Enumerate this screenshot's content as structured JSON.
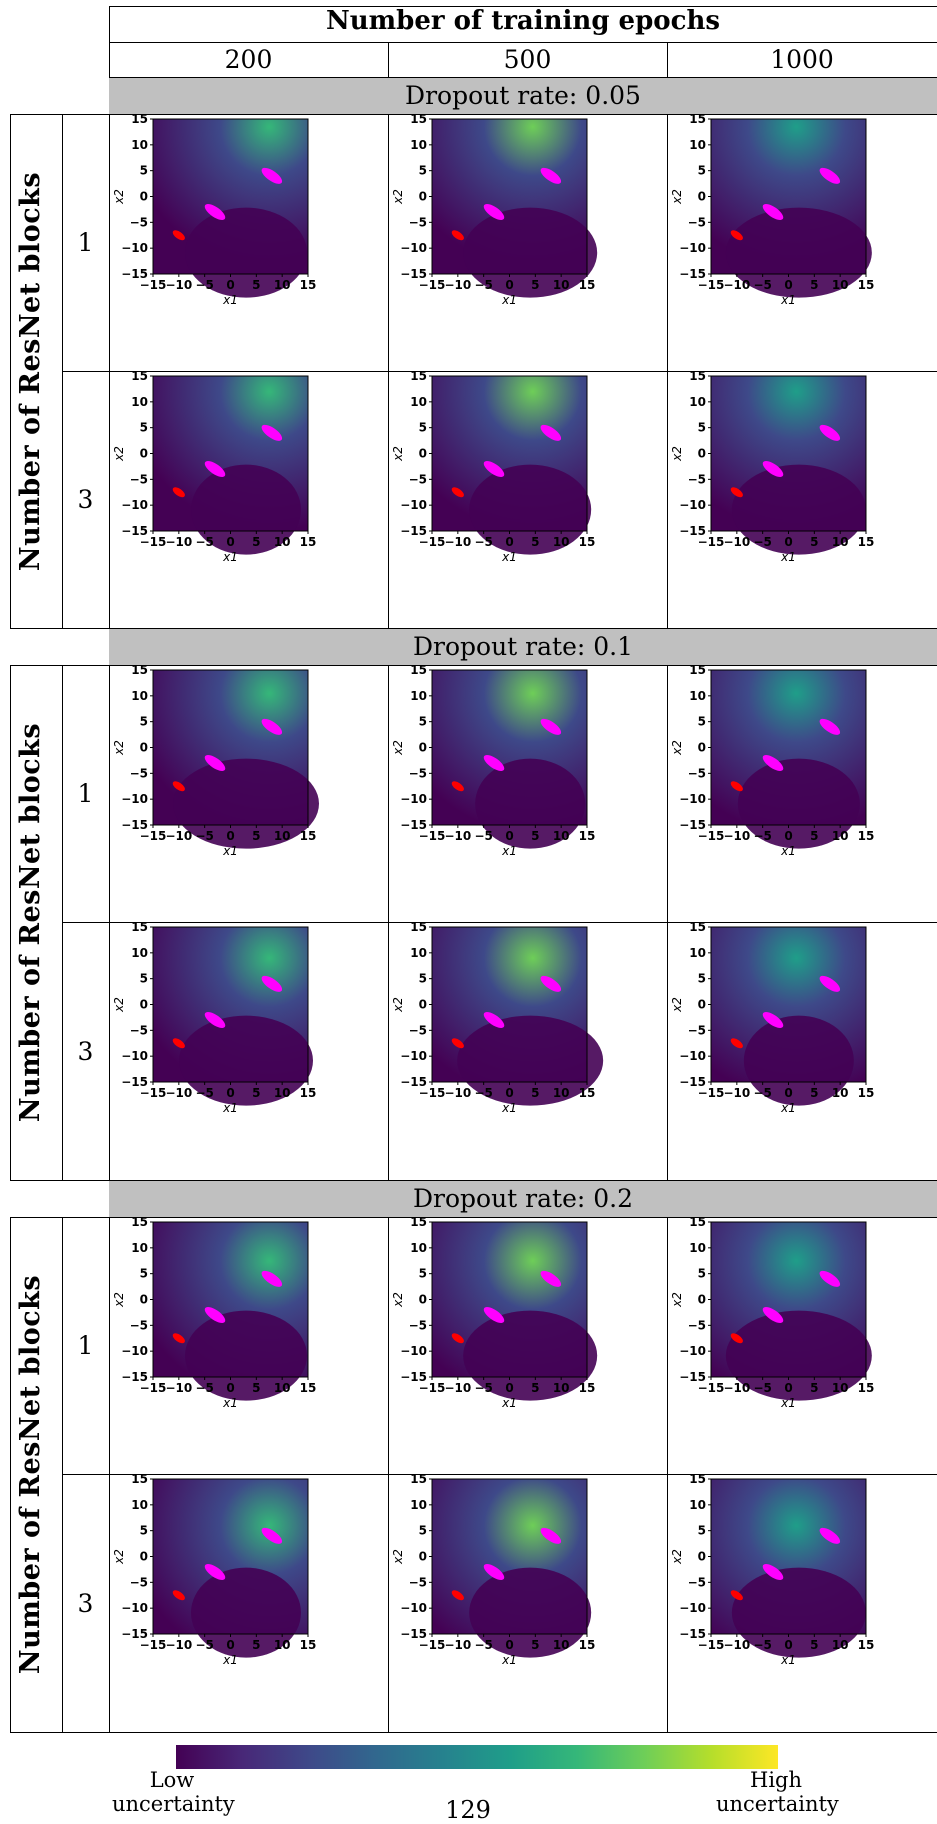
{
  "figure": {
    "column_header": "Number of training epochs",
    "epochs": [
      "200",
      "500",
      "1000"
    ],
    "row_header": "Number of ResNet blocks",
    "blocks": [
      "1",
      "3"
    ],
    "dropout_sections": [
      {
        "label": "Dropout rate: 0.05"
      },
      {
        "label": "Dropout rate: 0.1"
      },
      {
        "label": "Dropout rate: 0.2"
      }
    ],
    "colorbar": {
      "low_label_1": "Low",
      "low_label_2": "uncertainty",
      "high_label_1": "High",
      "high_label_2": "uncertainty",
      "colors": [
        "#440154",
        "#482878",
        "#3e4989",
        "#31688e",
        "#26828e",
        "#1f9e89",
        "#35b779",
        "#6ece58",
        "#b5de2b",
        "#fde725"
      ]
    },
    "page_number": "129"
  },
  "chart_data": {
    "type": "heatmap",
    "panel_grid": "3 dropout rates x 2 ResNet block counts x 3 epoch counts",
    "xlabel": "x1",
    "ylabel": "x2",
    "xlim": [
      -15,
      15
    ],
    "ylim": [
      -15,
      15
    ],
    "x_ticks": [
      "−15",
      "−10",
      "−5",
      "0",
      "5",
      "10",
      "15"
    ],
    "y_ticks": [
      "15",
      "10",
      "5",
      "0",
      "−5",
      "−10",
      "−15"
    ],
    "clusters": [
      {
        "color": "#ff00ff",
        "center": [
          8,
          4
        ]
      },
      {
        "color": "#ff00ff",
        "center": [
          -3,
          -3
        ]
      },
      {
        "color": "#ff0000",
        "center": [
          -10,
          -7.5
        ]
      }
    ],
    "colormap": "viridis"
  }
}
